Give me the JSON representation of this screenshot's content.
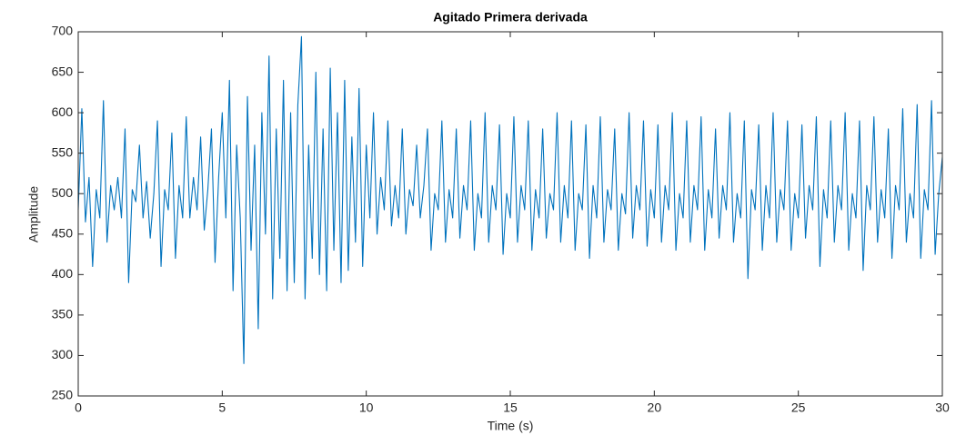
{
  "chart_data": {
    "type": "line",
    "title": "Agitado Primera derivada",
    "x_label": "Time (s)",
    "y_label": "Amplitude",
    "xlim": [
      0,
      30
    ],
    "xticks": [
      0,
      5,
      10,
      15,
      20,
      25,
      30
    ],
    "ylim": [
      250,
      700
    ],
    "yticks": [
      250,
      300,
      350,
      400,
      450,
      500,
      550,
      600,
      650,
      700
    ],
    "x": [
      0,
      0.125,
      0.25,
      0.375,
      0.5,
      0.625,
      0.75,
      0.875,
      1,
      1.125,
      1.25,
      1.375,
      1.5,
      1.625,
      1.75,
      1.875,
      2,
      2.125,
      2.25,
      2.375,
      2.5,
      2.625,
      2.75,
      2.875,
      3,
      3.125,
      3.25,
      3.375,
      3.5,
      3.625,
      3.75,
      3.875,
      4,
      4.125,
      4.25,
      4.375,
      4.5,
      4.625,
      4.75,
      4.875,
      5,
      5.125,
      5.25,
      5.375,
      5.5,
      5.625,
      5.75,
      5.875,
      6,
      6.125,
      6.25,
      6.375,
      6.5,
      6.625,
      6.75,
      6.875,
      7,
      7.125,
      7.25,
      7.375,
      7.5,
      7.625,
      7.75,
      7.875,
      8,
      8.125,
      8.25,
      8.375,
      8.5,
      8.625,
      8.75,
      8.875,
      9,
      9.125,
      9.25,
      9.375,
      9.5,
      9.625,
      9.75,
      9.875,
      10,
      10.125,
      10.25,
      10.375,
      10.5,
      10.625,
      10.75,
      10.875,
      11,
      11.125,
      11.25,
      11.375,
      11.5,
      11.625,
      11.75,
      11.875,
      12,
      12.125,
      12.25,
      12.375,
      12.5,
      12.625,
      12.75,
      12.875,
      13,
      13.125,
      13.25,
      13.375,
      13.5,
      13.625,
      13.75,
      13.875,
      14,
      14.125,
      14.25,
      14.375,
      14.5,
      14.625,
      14.75,
      14.875,
      15,
      15.125,
      15.25,
      15.375,
      15.5,
      15.625,
      15.75,
      15.875,
      16,
      16.125,
      16.25,
      16.375,
      16.5,
      16.625,
      16.75,
      16.875,
      17,
      17.125,
      17.25,
      17.375,
      17.5,
      17.625,
      17.75,
      17.875,
      18,
      18.125,
      18.25,
      18.375,
      18.5,
      18.625,
      18.75,
      18.875,
      19,
      19.125,
      19.25,
      19.375,
      19.5,
      19.625,
      19.75,
      19.875,
      20,
      20.125,
      20.25,
      20.375,
      20.5,
      20.625,
      20.75,
      20.875,
      21,
      21.125,
      21.25,
      21.375,
      21.5,
      21.625,
      21.75,
      21.875,
      22,
      22.125,
      22.25,
      22.375,
      22.5,
      22.625,
      22.75,
      22.875,
      23,
      23.125,
      23.25,
      23.375,
      23.5,
      23.625,
      23.75,
      23.875,
      24,
      24.125,
      24.25,
      24.375,
      24.5,
      24.625,
      24.75,
      24.875,
      25,
      25.125,
      25.25,
      25.375,
      25.5,
      25.625,
      25.75,
      25.875,
      26,
      26.125,
      26.25,
      26.375,
      26.5,
      26.625,
      26.75,
      26.875,
      27,
      27.125,
      27.25,
      27.375,
      27.5,
      27.625,
      27.75,
      27.875,
      28,
      28.125,
      28.25,
      28.375,
      28.5,
      28.625,
      28.75,
      28.875,
      29,
      29.125,
      29.25,
      29.375,
      29.5,
      29.625,
      29.75,
      29.875,
      30
    ],
    "series": [
      {
        "color": "#0072bd",
        "values": [
          480,
          605,
          465,
          520,
          410,
          505,
          470,
          615,
          440,
          510,
          480,
          520,
          470,
          580,
          390,
          505,
          490,
          560,
          470,
          515,
          445,
          500,
          590,
          410,
          505,
          480,
          575,
          420,
          510,
          470,
          595,
          470,
          520,
          480,
          570,
          455,
          505,
          580,
          415,
          520,
          600,
          470,
          640,
          380,
          560,
          470,
          290,
          620,
          430,
          560,
          333,
          600,
          450,
          670,
          370,
          580,
          420,
          640,
          380,
          600,
          390,
          610,
          694,
          370,
          560,
          420,
          650,
          400,
          580,
          380,
          655,
          430,
          600,
          390,
          640,
          405,
          570,
          440,
          630,
          410,
          560,
          470,
          600,
          450,
          520,
          480,
          590,
          460,
          510,
          470,
          580,
          450,
          505,
          485,
          560,
          470,
          510,
          580,
          430,
          500,
          480,
          590,
          440,
          505,
          470,
          580,
          445,
          510,
          480,
          590,
          430,
          500,
          470,
          600,
          440,
          510,
          480,
          585,
          425,
          500,
          470,
          595,
          440,
          510,
          480,
          590,
          430,
          505,
          470,
          580,
          445,
          500,
          480,
          600,
          440,
          510,
          470,
          590,
          430,
          500,
          480,
          585,
          420,
          510,
          470,
          595,
          440,
          505,
          480,
          580,
          430,
          500,
          475,
          600,
          445,
          510,
          480,
          590,
          435,
          505,
          470,
          585,
          440,
          510,
          480,
          600,
          430,
          500,
          470,
          590,
          440,
          510,
          480,
          595,
          430,
          505,
          470,
          580,
          445,
          510,
          480,
          600,
          440,
          500,
          470,
          590,
          395,
          505,
          480,
          585,
          430,
          510,
          470,
          600,
          440,
          505,
          480,
          590,
          430,
          500,
          470,
          585,
          445,
          510,
          480,
          595,
          410,
          505,
          470,
          590,
          440,
          510,
          480,
          600,
          430,
          500,
          470,
          590,
          405,
          510,
          480,
          595,
          440,
          505,
          470,
          580,
          420,
          510,
          480,
          605,
          440,
          500,
          470,
          610,
          420,
          505,
          480,
          615,
          425,
          500,
          545
        ]
      }
    ]
  }
}
